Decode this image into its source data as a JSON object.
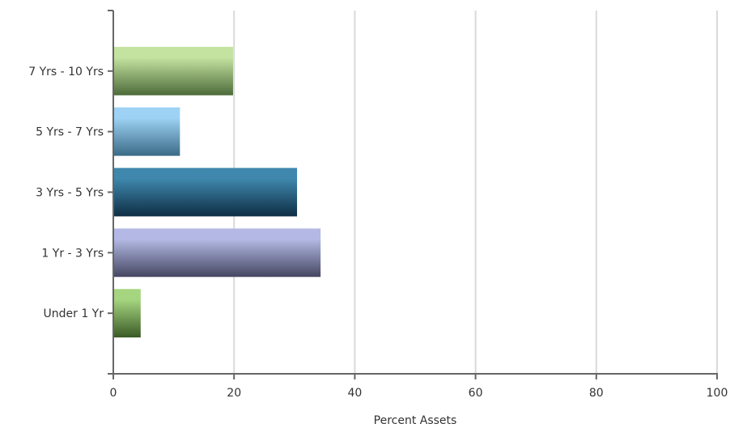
{
  "chart_data": {
    "type": "bar",
    "orientation": "horizontal",
    "title": "",
    "xlabel": "Percent Assets",
    "ylabel": "",
    "xlim": [
      0,
      100
    ],
    "x_ticks": [
      0,
      20,
      40,
      60,
      80,
      100
    ],
    "grid": true,
    "legend": "none",
    "categories": [
      "7 Yrs - 10 Yrs",
      "5 Yrs - 7 Yrs",
      "3 Yrs - 5 Yrs",
      "1 Yr - 3 Yrs",
      "Under 1 Yr"
    ],
    "values": [
      19.7,
      10.9,
      30.3,
      34.2,
      4.4
    ],
    "colors": [
      {
        "light": "#c4e3a0",
        "dark": "#4d6b3a"
      },
      {
        "light": "#9dd2f4",
        "dark": "#3a6a86"
      },
      {
        "light": "#3f87ad",
        "dark": "#0e2e44"
      },
      {
        "light": "#b3b9e4",
        "dark": "#454661"
      },
      {
        "light": "#a5d57f",
        "dark": "#3a5a26"
      }
    ]
  }
}
